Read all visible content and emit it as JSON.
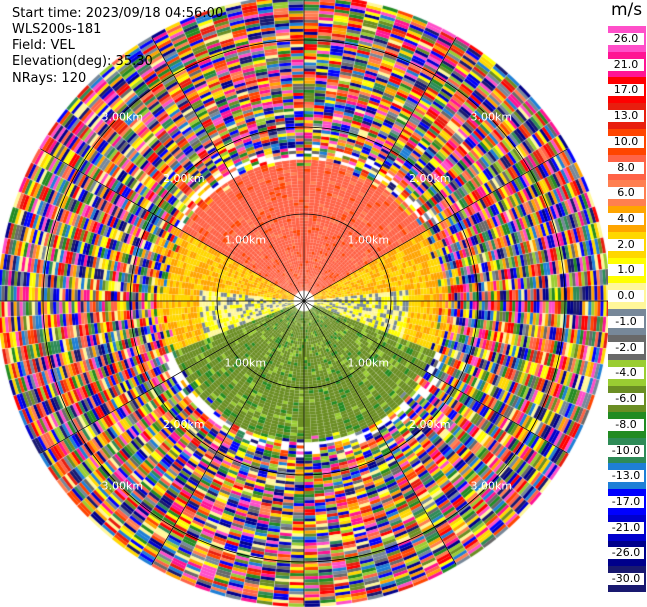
{
  "header": {
    "start_time": "Start time: 2023/09/18 04:56:00",
    "site": "WLS200s-181",
    "field": "Field: VEL",
    "elevation": "Elevation(deg): 35.30",
    "nrays": "NRays: 120"
  },
  "chart_data": {
    "type": "heatmap",
    "projection": "polar-ppi",
    "field": "VEL",
    "units": "m/s",
    "nrays": 120,
    "elevation_deg": 35.3,
    "range_rings_km": [
      1.0,
      2.0,
      3.0
    ],
    "range_ring_labels": [
      "1.00km",
      "2.00km",
      "3.00km"
    ],
    "colorbar": {
      "unit_label": "m/s",
      "ticks": [
        "26.0",
        "21.0",
        "17.0",
        "13.0",
        "10.0",
        "8.0",
        "6.0",
        "4.0",
        "2.0",
        "1.0",
        "0.0",
        "-1.0",
        "-2.0",
        "-4.0",
        "-6.0",
        "-8.0",
        "-10.0",
        "-13.0",
        "-17.0",
        "-21.0",
        "-26.0",
        "-30.0"
      ],
      "colors": [
        "#ff4fc9",
        "#ff1493",
        "#ff0000",
        "#e81e0e",
        "#ff4500",
        "#ff6347",
        "#ff7f50",
        "#ffa500",
        "#ffd700",
        "#ffff00",
        "#fff79a",
        "#778899",
        "#696969",
        "#9acd32",
        "#6b8e23",
        "#228b22",
        "#2e8b57",
        "#1e7fd6",
        "#0000ff",
        "#0000cd",
        "#00008b",
        "#191970"
      ]
    },
    "sectors": [
      {
        "azimuth_deg": [
          300,
          60
        ],
        "range_km": [
          0.1,
          1.6
        ],
        "velocity": 8.0
      },
      {
        "azimuth_deg": [
          250,
          300
        ],
        "range_km": [
          0.1,
          1.8
        ],
        "velocity": 3.0
      },
      {
        "azimuth_deg": [
          60,
          110
        ],
        "range_km": [
          0.1,
          1.8
        ],
        "velocity": 3.0
      },
      {
        "azimuth_deg": [
          110,
          250
        ],
        "range_km": [
          0.1,
          1.6
        ],
        "velocity": -6.0
      },
      {
        "azimuth_deg": [
          85,
          110
        ],
        "range_km": [
          0.1,
          1.2
        ],
        "velocity": 0.0
      },
      {
        "azimuth_deg": [
          250,
          275
        ],
        "range_km": [
          0.1,
          1.2
        ],
        "velocity": 0.0
      }
    ],
    "noise_range_km": [
      1.8,
      3.5
    ]
  }
}
